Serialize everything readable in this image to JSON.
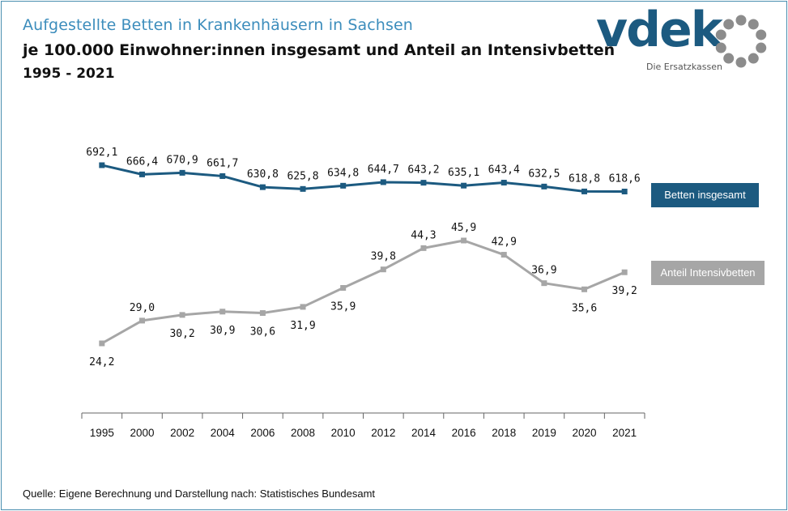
{
  "header": {
    "title": "Aufgestellte Betten in Krankenhäusern in Sachsen",
    "subtitle": "je 100.000 Einwohner:innen insgesamt und Anteil an Intensivbetten",
    "period": "1995 - 2021"
  },
  "logo": {
    "wordmark": "vdek",
    "tagline": "Die Ersatzkassen",
    "color": "#1c5a80",
    "ring_color": "#8c8c8c"
  },
  "source": "Quelle: Eigene Berechnung und Darstellung nach: Statistisches Bundesamt",
  "chart_data": {
    "type": "line",
    "categories": [
      "1995",
      "2000",
      "2002",
      "2004",
      "2006",
      "2008",
      "2010",
      "2012",
      "2014",
      "2016",
      "2018",
      "2019",
      "2020",
      "2021"
    ],
    "series": [
      {
        "name": "Betten insgesamt",
        "color": "#1c5a80",
        "values": [
          692.1,
          666.4,
          670.9,
          661.7,
          630.8,
          625.8,
          634.8,
          644.7,
          643.2,
          635.1,
          643.4,
          632.5,
          618.8,
          618.6
        ],
        "labels": [
          "692,1",
          "666,4",
          "670,9",
          "661,7",
          "630,8",
          "625,8",
          "634,8",
          "644,7",
          "643,2",
          "635,1",
          "643,4",
          "632,5",
          "618,8",
          "618,6"
        ],
        "label_position": "above"
      },
      {
        "name": "Anteil Intensivbetten",
        "color": "#a6a6a6",
        "values": [
          24.2,
          29.0,
          30.2,
          30.9,
          30.6,
          31.9,
          35.9,
          39.8,
          44.3,
          45.9,
          42.9,
          36.9,
          35.6,
          39.2
        ],
        "labels": [
          "24,2",
          "29,0",
          "30,2",
          "30,9",
          "30,6",
          "31,9",
          "35,9",
          "39,8",
          "44,3",
          "45,9",
          "42,9",
          "36,9",
          "35,6",
          "39,2"
        ],
        "label_position": [
          "below",
          "above",
          "below",
          "below",
          "below",
          "below",
          "below",
          "above",
          "above",
          "above",
          "above",
          "above",
          "below",
          "below"
        ]
      }
    ],
    "title": "Aufgestellte Betten in Krankenhäusern in Sachsen",
    "xlabel": "",
    "ylabel": "",
    "legend": [
      "Betten insgesamt",
      "Anteil Intensivbetten"
    ],
    "legend_placement": "right",
    "grid": false
  }
}
